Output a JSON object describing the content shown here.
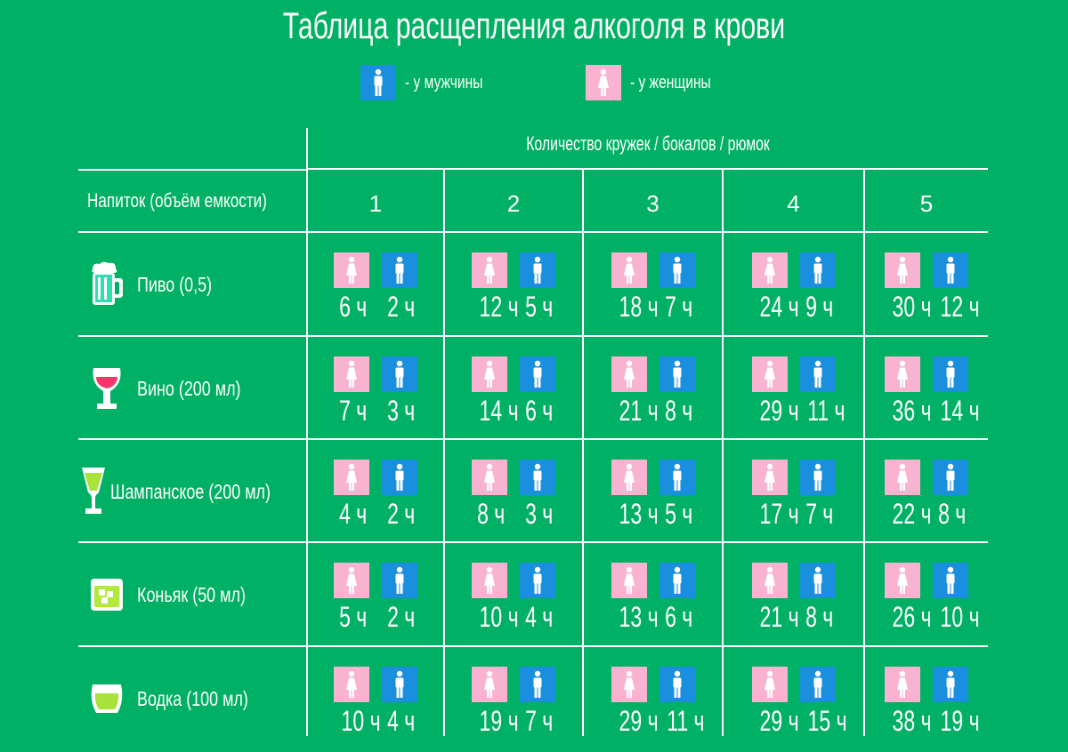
{
  "title": "Таблица расщепления алкоголя в крови",
  "legend": {
    "male": {
      "icon": "male-figure-icon",
      "label": "- у мужчины",
      "color": "#1a8fde"
    },
    "female": {
      "icon": "female-figure-icon",
      "label": "- у женщины",
      "color": "#f7b3d0"
    }
  },
  "table": {
    "quantity_header": "Количество кружек / бокалов / рюмок",
    "drink_header": "Напиток (объём емкости)",
    "columns": [
      "1",
      "2",
      "3",
      "4",
      "5"
    ],
    "rows": [
      {
        "drink": "Пиво (0,5)",
        "icon": "beer-mug-icon",
        "cells": [
          {
            "female": "6 ч",
            "male": "2 ч"
          },
          {
            "female": "12 ч",
            "male": "5 ч"
          },
          {
            "female": "18 ч",
            "male": "7 ч"
          },
          {
            "female": "24 ч",
            "male": "9 ч"
          },
          {
            "female": "30 ч",
            "male": "12 ч"
          }
        ]
      },
      {
        "drink": "Вино (200 мл)",
        "icon": "wine-glass-icon",
        "cells": [
          {
            "female": "7 ч",
            "male": "3 ч"
          },
          {
            "female": "14 ч",
            "male": "6 ч"
          },
          {
            "female": "21 ч",
            "male": "8 ч"
          },
          {
            "female": "29 ч",
            "male": "11 ч"
          },
          {
            "female": "36 ч",
            "male": "14 ч"
          }
        ]
      },
      {
        "drink": "Шампанское (200 мл)",
        "icon": "champagne-glass-icon",
        "cells": [
          {
            "female": "4 ч",
            "male": "2 ч"
          },
          {
            "female": "8 ч",
            "male": "3 ч"
          },
          {
            "female": "13 ч",
            "male": "5 ч"
          },
          {
            "female": "17 ч",
            "male": "7 ч"
          },
          {
            "female": "22 ч",
            "male": "8 ч"
          }
        ]
      },
      {
        "drink": "Коньяк (50 мл)",
        "icon": "cognac-glass-icon",
        "cells": [
          {
            "female": "5 ч",
            "male": "2 ч"
          },
          {
            "female": "10 ч",
            "male": "4 ч"
          },
          {
            "female": "13 ч",
            "male": "6 ч"
          },
          {
            "female": "21 ч",
            "male": "8 ч"
          },
          {
            "female": "26 ч",
            "male": "10 ч"
          }
        ]
      },
      {
        "drink": "Водка (100 мл)",
        "icon": "vodka-glass-icon",
        "cells": [
          {
            "female": "10 ч",
            "male": "4 ч"
          },
          {
            "female": "19 ч",
            "male": "7 ч"
          },
          {
            "female": "29 ч",
            "male": "11 ч"
          },
          {
            "female": "29 ч",
            "male": "15 ч"
          },
          {
            "female": "38 ч",
            "male": "19 ч"
          }
        ]
      }
    ]
  },
  "colors": {
    "background": "#00b064",
    "male": "#1a8fde",
    "female": "#f7b3d0",
    "lines": "#ffffff"
  }
}
